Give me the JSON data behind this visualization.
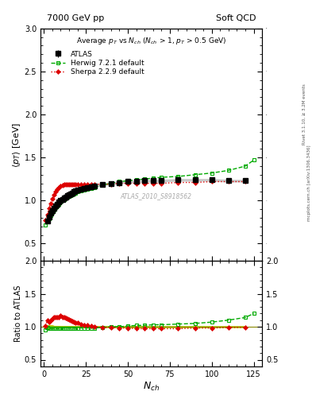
{
  "title_left": "7000 GeV pp",
  "title_right": "Soft QCD",
  "plot_title": "Average $p_T$ vs $N_{ch}$ ($N_{ch}$ > 1, $p_T$ > 0.5 GeV)",
  "ylabel_main": "$\\langle p_T \\rangle$ [GeV]",
  "ylabel_ratio": "Ratio to ATLAS",
  "xlabel": "$N_{ch}$",
  "right_label1": "Rivet 3.1.10, ≥ 3.2M events",
  "right_label2": "mcplots.cern.ch [arXiv:1306.3436]",
  "watermark": "ATLAS_2010_S8918562",
  "main_ylim": [
    0.3,
    3.0
  ],
  "ratio_ylim": [
    0.4,
    2.0
  ],
  "xlim": [
    -2,
    130
  ],
  "atlas_x": [
    2,
    3,
    4,
    5,
    6,
    7,
    8,
    9,
    10,
    11,
    12,
    13,
    14,
    15,
    16,
    17,
    18,
    19,
    20,
    22,
    24,
    26,
    28,
    30,
    35,
    40,
    45,
    50,
    55,
    60,
    65,
    70,
    80,
    90,
    100,
    110,
    120
  ],
  "atlas_y": [
    0.76,
    0.81,
    0.85,
    0.88,
    0.91,
    0.94,
    0.96,
    0.98,
    1.0,
    1.01,
    1.03,
    1.04,
    1.06,
    1.07,
    1.08,
    1.09,
    1.1,
    1.11,
    1.12,
    1.13,
    1.14,
    1.15,
    1.16,
    1.17,
    1.19,
    1.2,
    1.21,
    1.22,
    1.22,
    1.23,
    1.23,
    1.23,
    1.24,
    1.24,
    1.24,
    1.23,
    1.23
  ],
  "atlas_yerr": [
    0.02,
    0.02,
    0.02,
    0.02,
    0.01,
    0.01,
    0.01,
    0.01,
    0.01,
    0.01,
    0.01,
    0.01,
    0.01,
    0.01,
    0.01,
    0.01,
    0.01,
    0.01,
    0.01,
    0.01,
    0.01,
    0.01,
    0.01,
    0.01,
    0.01,
    0.01,
    0.01,
    0.01,
    0.01,
    0.01,
    0.01,
    0.01,
    0.01,
    0.01,
    0.01,
    0.01,
    0.01
  ],
  "herwig_x": [
    1,
    2,
    3,
    4,
    5,
    6,
    7,
    8,
    9,
    10,
    11,
    12,
    13,
    14,
    15,
    16,
    17,
    18,
    19,
    20,
    22,
    24,
    26,
    28,
    30,
    35,
    40,
    45,
    50,
    55,
    60,
    65,
    70,
    80,
    90,
    100,
    110,
    120,
    125
  ],
  "herwig_y": [
    0.72,
    0.75,
    0.79,
    0.83,
    0.86,
    0.89,
    0.92,
    0.94,
    0.96,
    0.98,
    1.0,
    1.01,
    1.03,
    1.04,
    1.05,
    1.06,
    1.07,
    1.08,
    1.09,
    1.1,
    1.11,
    1.12,
    1.13,
    1.14,
    1.15,
    1.18,
    1.2,
    1.22,
    1.23,
    1.24,
    1.25,
    1.26,
    1.27,
    1.28,
    1.3,
    1.32,
    1.35,
    1.4,
    1.47
  ],
  "sherpa_x": [
    1,
    2,
    3,
    4,
    5,
    6,
    7,
    8,
    9,
    10,
    11,
    12,
    13,
    14,
    15,
    16,
    17,
    18,
    19,
    20,
    22,
    24,
    26,
    28,
    30,
    35,
    40,
    45,
    50,
    55,
    60,
    65,
    70,
    80,
    90,
    100,
    110,
    120
  ],
  "sherpa_y": [
    0.77,
    0.84,
    0.91,
    0.97,
    1.02,
    1.07,
    1.1,
    1.13,
    1.15,
    1.17,
    1.18,
    1.19,
    1.19,
    1.19,
    1.19,
    1.19,
    1.19,
    1.19,
    1.19,
    1.19,
    1.19,
    1.19,
    1.19,
    1.19,
    1.19,
    1.19,
    1.19,
    1.2,
    1.2,
    1.2,
    1.2,
    1.2,
    1.2,
    1.21,
    1.21,
    1.22,
    1.22,
    1.22
  ],
  "herwig_ratio_x": [
    1,
    2,
    3,
    4,
    5,
    6,
    7,
    8,
    9,
    10,
    11,
    12,
    13,
    14,
    15,
    16,
    17,
    18,
    19,
    20,
    22,
    24,
    26,
    28,
    30,
    35,
    40,
    45,
    50,
    55,
    60,
    65,
    70,
    80,
    90,
    100,
    110,
    120,
    125
  ],
  "herwig_ratio": [
    0.95,
    0.99,
    0.98,
    0.97,
    0.97,
    0.97,
    0.97,
    0.97,
    0.97,
    0.98,
    0.98,
    0.98,
    0.98,
    0.98,
    0.98,
    0.98,
    0.98,
    0.98,
    0.98,
    0.98,
    0.98,
    0.98,
    0.98,
    0.98,
    0.98,
    0.99,
    1.0,
    1.0,
    1.01,
    1.02,
    1.02,
    1.03,
    1.03,
    1.04,
    1.05,
    1.07,
    1.1,
    1.14,
    1.2
  ],
  "sherpa_ratio_x": [
    1,
    2,
    3,
    4,
    5,
    6,
    7,
    8,
    9,
    10,
    11,
    12,
    13,
    14,
    15,
    16,
    17,
    18,
    19,
    20,
    22,
    24,
    26,
    28,
    30,
    35,
    40,
    45,
    50,
    55,
    60,
    65,
    70,
    80,
    90,
    100,
    110,
    120
  ],
  "sherpa_ratio": [
    1.01,
    1.1,
    1.07,
    1.1,
    1.12,
    1.14,
    1.15,
    1.15,
    1.15,
    1.17,
    1.15,
    1.14,
    1.13,
    1.12,
    1.11,
    1.1,
    1.08,
    1.07,
    1.06,
    1.06,
    1.04,
    1.03,
    1.02,
    1.01,
    1.0,
    0.99,
    0.99,
    0.98,
    0.98,
    0.97,
    0.97,
    0.97,
    0.97,
    0.97,
    0.98,
    0.98,
    0.99,
    0.99
  ],
  "atlas_color": "#000000",
  "herwig_color": "#00aa00",
  "sherpa_color": "#dd0000",
  "band_color": "#bbcc00"
}
